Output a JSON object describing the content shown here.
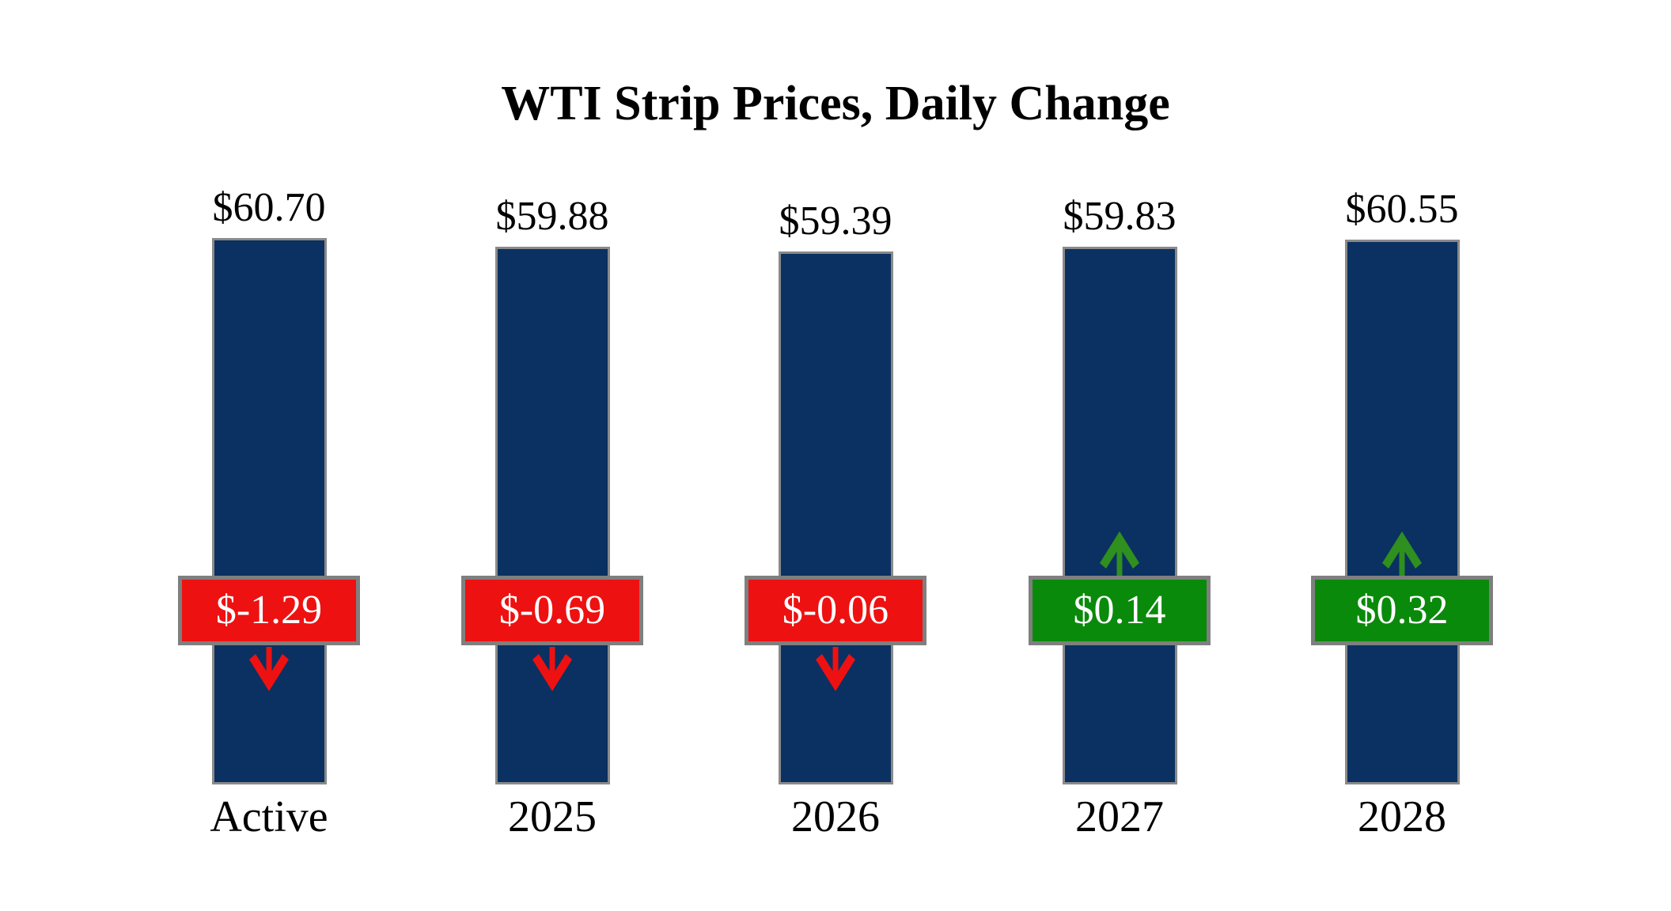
{
  "chart_data": {
    "type": "bar",
    "title": "WTI Strip Prices, Daily Change",
    "xlabel": "",
    "ylabel": "",
    "grid": false,
    "axes_hidden": true,
    "legend": false,
    "categories": [
      "Active",
      "2025",
      "2026",
      "2027",
      "2028"
    ],
    "bars": [
      {
        "category": "Active",
        "price": 60.7,
        "price_label": "$60.70",
        "change": -1.29,
        "change_label": "$-1.29",
        "direction": "down"
      },
      {
        "category": "2025",
        "price": 59.88,
        "price_label": "$59.88",
        "change": -0.69,
        "change_label": "$-0.69",
        "direction": "down"
      },
      {
        "category": "2026",
        "price": 59.39,
        "price_label": "$59.39",
        "change": -0.06,
        "change_label": "$-0.06",
        "direction": "down"
      },
      {
        "category": "2027",
        "price": 59.83,
        "price_label": "$59.83",
        "change": 0.14,
        "change_label": "$0.14",
        "direction": "up"
      },
      {
        "category": "2028",
        "price": 60.55,
        "price_label": "$60.55",
        "change": 0.32,
        "change_label": "$0.32",
        "direction": "up"
      }
    ],
    "colors": {
      "background": "#ffffff",
      "text": "#000000",
      "bar_fill": "#0a3161",
      "bar_border": "#8a8a8a",
      "badge_border": "#7f7f7f",
      "badge_text": "#ffffff",
      "negative_badge": "#ee1111",
      "positive_badge": "#0a8a0a",
      "down_arrow": "#ee1111",
      "up_arrow": "#2f8f1f"
    }
  }
}
